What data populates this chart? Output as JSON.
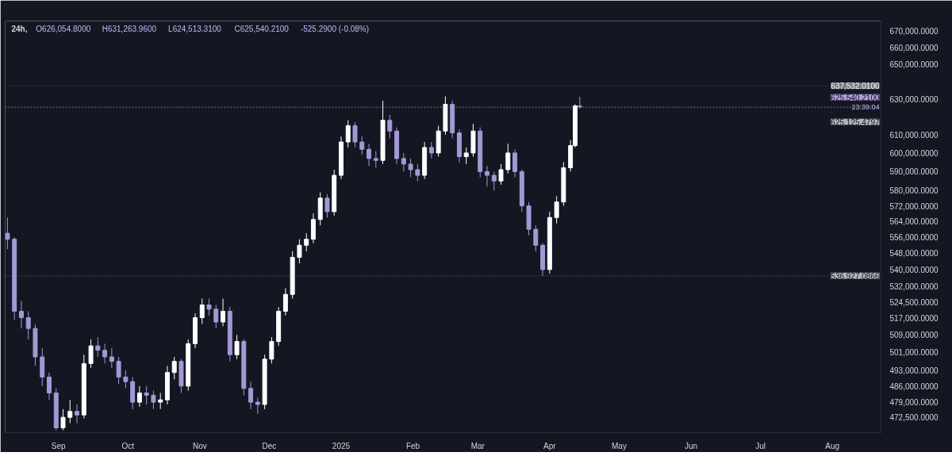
{
  "chart_data": {
    "type": "candlestick",
    "title": "24h,",
    "annotations": [
      "O626,054.8000",
      "H631,263.9600",
      "L624,513.3100",
      "C625,540.2100",
      "-525.2900 (-0.08%)",
      "23:39:04"
    ],
    "x": [
      "2024-08-10",
      "2024-08-13",
      "2024-08-16",
      "2024-08-19",
      "2024-08-22",
      "2024-08-25",
      "2024-08-28",
      "2024-08-31",
      "2024-09-03",
      "2024-09-06",
      "2024-09-09",
      "2024-09-12",
      "2024-09-15",
      "2024-09-18",
      "2024-09-21",
      "2024-09-24",
      "2024-09-27",
      "2024-09-30",
      "2024-10-03",
      "2024-10-06",
      "2024-10-09",
      "2024-10-12",
      "2024-10-15",
      "2024-10-18",
      "2024-10-21",
      "2024-10-24",
      "2024-10-27",
      "2024-10-30",
      "2024-11-02",
      "2024-11-05",
      "2024-11-08",
      "2024-11-11",
      "2024-11-14",
      "2024-11-17",
      "2024-11-20",
      "2024-11-23",
      "2024-11-26",
      "2024-11-29",
      "2024-12-02",
      "2024-12-05",
      "2024-12-08",
      "2024-12-11",
      "2024-12-14",
      "2024-12-17",
      "2024-12-20",
      "2024-12-23",
      "2024-12-26",
      "2024-12-29",
      "2025-01-01",
      "2025-01-04",
      "2025-01-07",
      "2025-01-10",
      "2025-01-13",
      "2025-01-16",
      "2025-01-19",
      "2025-01-22",
      "2025-01-25",
      "2025-01-28",
      "2025-01-31",
      "2025-02-03",
      "2025-02-06",
      "2025-02-09",
      "2025-02-12",
      "2025-02-15",
      "2025-02-18",
      "2025-02-21",
      "2025-02-24",
      "2025-02-27",
      "2025-03-02",
      "2025-03-05",
      "2025-03-08",
      "2025-03-11",
      "2025-03-14",
      "2025-03-17",
      "2025-03-20",
      "2025-03-23",
      "2025-03-26",
      "2025-03-29",
      "2025-04-01",
      "2025-04-04",
      "2025-04-07",
      "2025-04-10",
      "2025-04-12",
      "2025-04-14"
    ],
    "ohlc": [
      [
        558000,
        566000,
        550000,
        555000
      ],
      [
        555000,
        556000,
        516000,
        520000
      ],
      [
        520000,
        525000,
        512000,
        517000
      ],
      [
        517000,
        520000,
        507000,
        512000
      ],
      [
        512000,
        514000,
        495000,
        499000
      ],
      [
        499000,
        503000,
        486000,
        490000
      ],
      [
        490000,
        492000,
        480000,
        483000
      ],
      [
        483000,
        485000,
        467000,
        468000
      ],
      [
        468000,
        476000,
        467000,
        472500
      ],
      [
        472500,
        480000,
        470000,
        475000
      ],
      [
        475000,
        478000,
        470000,
        473500
      ],
      [
        473500,
        500000,
        472000,
        496000
      ],
      [
        496000,
        507000,
        494000,
        504000
      ],
      [
        504000,
        508000,
        499000,
        502000
      ],
      [
        502000,
        505000,
        496000,
        499000
      ],
      [
        499000,
        503000,
        494000,
        497000
      ],
      [
        497000,
        499000,
        487000,
        490000
      ],
      [
        490000,
        493000,
        485000,
        488000
      ],
      [
        488000,
        490000,
        476000,
        479000
      ],
      [
        479000,
        486000,
        477000,
        483000
      ],
      [
        483000,
        486000,
        478000,
        482000
      ],
      [
        482000,
        484000,
        476000,
        479000
      ],
      [
        479000,
        483000,
        476000,
        480000
      ],
      [
        480000,
        495000,
        478000,
        492000
      ],
      [
        492000,
        499000,
        489000,
        497000
      ],
      [
        497000,
        498000,
        483000,
        486000
      ],
      [
        486000,
        507000,
        484000,
        505000
      ],
      [
        505000,
        519000,
        503000,
        517000
      ],
      [
        517000,
        526000,
        514000,
        523000
      ],
      [
        523000,
        526000,
        518000,
        521000
      ],
      [
        521000,
        523000,
        512000,
        515000
      ],
      [
        515000,
        526000,
        513000,
        520000
      ],
      [
        520000,
        522000,
        497000,
        500000
      ],
      [
        500000,
        509000,
        498000,
        506000
      ],
      [
        506000,
        507000,
        482000,
        485000
      ],
      [
        485000,
        488000,
        476000,
        479000
      ],
      [
        479000,
        481000,
        474000,
        478000
      ],
      [
        478000,
        500000,
        476000,
        498000
      ],
      [
        498000,
        508000,
        496000,
        506000
      ],
      [
        506000,
        522000,
        504000,
        520000
      ],
      [
        520000,
        531000,
        518000,
        528000
      ],
      [
        528000,
        549000,
        526000,
        546000
      ],
      [
        546000,
        555000,
        543000,
        552000
      ],
      [
        552000,
        558000,
        549000,
        555000
      ],
      [
        555000,
        568000,
        553000,
        565000
      ],
      [
        565000,
        579000,
        562000,
        576000
      ],
      [
        576000,
        578000,
        566000,
        569000
      ],
      [
        569000,
        591000,
        567000,
        588000
      ],
      [
        588000,
        609000,
        586000,
        606000
      ],
      [
        606000,
        618000,
        603000,
        615000
      ],
      [
        615000,
        617000,
        603000,
        606000
      ],
      [
        606000,
        609000,
        599000,
        602000
      ],
      [
        602000,
        605000,
        593000,
        597000
      ],
      [
        597000,
        601000,
        592000,
        596000
      ],
      [
        596000,
        629000,
        594000,
        618000
      ],
      [
        618000,
        621000,
        608000,
        612000
      ],
      [
        612000,
        614000,
        594000,
        597000
      ],
      [
        597000,
        600000,
        590000,
        594000
      ],
      [
        594000,
        597000,
        587000,
        591000
      ],
      [
        591000,
        594000,
        585000,
        588000
      ],
      [
        588000,
        606000,
        586000,
        603000
      ],
      [
        603000,
        606000,
        597000,
        600000
      ],
      [
        600000,
        615000,
        598000,
        612000
      ],
      [
        612000,
        631500,
        610000,
        627000
      ],
      [
        627000,
        629000,
        608000,
        611000
      ],
      [
        611000,
        613000,
        595000,
        598000
      ],
      [
        598000,
        603000,
        594000,
        600000
      ],
      [
        600000,
        616000,
        598000,
        612000
      ],
      [
        612000,
        614000,
        587000,
        590000
      ],
      [
        590000,
        593000,
        582000,
        588000
      ],
      [
        588000,
        590000,
        580000,
        585000
      ],
      [
        585000,
        594000,
        583000,
        591000
      ],
      [
        591000,
        605000,
        589000,
        600000
      ],
      [
        600000,
        602000,
        587000,
        590000
      ],
      [
        590000,
        591000,
        569000,
        572000
      ],
      [
        572000,
        574000,
        557000,
        560000
      ],
      [
        560000,
        562000,
        549000,
        552000
      ],
      [
        552000,
        553000,
        536927.0866,
        540000
      ],
      [
        540000,
        569000,
        538000,
        566000
      ],
      [
        566000,
        577000,
        563000,
        574000
      ],
      [
        574000,
        595000,
        572000,
        592000
      ],
      [
        592000,
        607000,
        590000,
        604000
      ],
      [
        604000,
        627000,
        603000,
        626054.8
      ],
      [
        626054.8,
        631263.96,
        624513.31,
        625540.21
      ]
    ],
    "colors": [
      "#a498d6",
      "#a498d6",
      "#a498d6",
      "#a498d6",
      "#a498d6",
      "#a498d6",
      "#a498d6",
      "#a498d6",
      "#ffffff",
      "#ffffff",
      "#a498d6",
      "#ffffff",
      "#ffffff",
      "#a498d6",
      "#a498d6",
      "#a498d6",
      "#a498d6",
      "#a498d6",
      "#a498d6",
      "#ffffff",
      "#a498d6",
      "#a498d6",
      "#ffffff",
      "#ffffff",
      "#ffffff",
      "#a498d6",
      "#ffffff",
      "#ffffff",
      "#ffffff",
      "#a498d6",
      "#a498d6",
      "#ffffff",
      "#a498d6",
      "#ffffff",
      "#a498d6",
      "#a498d6",
      "#a498d6",
      "#ffffff",
      "#ffffff",
      "#ffffff",
      "#ffffff",
      "#ffffff",
      "#ffffff",
      "#ffffff",
      "#ffffff",
      "#ffffff",
      "#a498d6",
      "#ffffff",
      "#ffffff",
      "#ffffff",
      "#a498d6",
      "#a498d6",
      "#a498d6",
      "#a498d6",
      "#ffffff",
      "#a498d6",
      "#a498d6",
      "#a498d6",
      "#a498d6",
      "#a498d6",
      "#ffffff",
      "#a498d6",
      "#ffffff",
      "#ffffff",
      "#a498d6",
      "#a498d6",
      "#ffffff",
      "#ffffff",
      "#a498d6",
      "#a498d6",
      "#a498d6",
      "#ffffff",
      "#ffffff",
      "#a498d6",
      "#a498d6",
      "#a498d6",
      "#a498d6",
      "#a498d6",
      "#ffffff",
      "#ffffff",
      "#ffffff",
      "#ffffff",
      "#ffffff",
      "#a498d6"
    ],
    "xlim": [
      "2024-08-09",
      "2025-08-22"
    ],
    "xticks": [
      {
        "value": "2024-09-01",
        "label": "Sep"
      },
      {
        "value": "2024-10-01",
        "label": "Oct"
      },
      {
        "value": "2024-11-01",
        "label": "Nov"
      },
      {
        "value": "2024-12-01",
        "label": "Dec"
      },
      {
        "value": "2025-01-01",
        "label": "2025"
      },
      {
        "value": "2025-02-01",
        "label": "Feb"
      },
      {
        "value": "2025-03-01",
        "label": "Mar"
      },
      {
        "value": "2025-04-01",
        "label": "Apr"
      },
      {
        "value": "2025-05-01",
        "label": "May"
      },
      {
        "value": "2025-06-01",
        "label": "Jun"
      },
      {
        "value": "2025-07-01",
        "label": "Jul"
      },
      {
        "value": "2025-08-01",
        "label": "Aug"
      }
    ],
    "log": true,
    "ylim": [
      466000,
      676000
    ],
    "yticks": [
      {
        "value": 472500,
        "label": "472,500.0000"
      },
      {
        "value": 479000,
        "label": "479,000.0000"
      },
      {
        "value": 486000,
        "label": "486,000.0000"
      },
      {
        "value": 493000,
        "label": "493,000.0000"
      },
      {
        "value": 501000,
        "label": "501,000.0000"
      },
      {
        "value": 509000,
        "label": "509,000.0000"
      },
      {
        "value": 517000,
        "label": "517,000.0000"
      },
      {
        "value": 524500,
        "label": "524,500.0000"
      },
      {
        "value": 532000,
        "label": "532,000.0000"
      },
      {
        "value": 540000,
        "label": "540,000.0000"
      },
      {
        "value": 548000,
        "label": "548,000.0000"
      },
      {
        "value": 556000,
        "label": "556,000.0000"
      },
      {
        "value": 564000,
        "label": "564,000.0000"
      },
      {
        "value": 572000,
        "label": "572,000.0000"
      },
      {
        "value": 580000,
        "label": "580,000.0000"
      },
      {
        "value": 590000,
        "label": "590,000.0000"
      },
      {
        "value": 600000,
        "label": "600,000.0000"
      },
      {
        "value": 610000,
        "label": "610,000.0000"
      },
      {
        "value": 630000,
        "label": "630,000.0000"
      },
      {
        "value": 650000,
        "label": "650,000.0000"
      },
      {
        "value": 660000,
        "label": "660,000.0000"
      },
      {
        "value": 670000,
        "label": "670,000.0000"
      }
    ],
    "ref_lines": [
      {
        "axis": "y",
        "value": 637532.01,
        "label": "637,532.0100",
        "color": "#787b86"
      },
      {
        "axis": "y",
        "value": 625540.21,
        "label": "625,540.2100",
        "color": "#b39ddb"
      },
      {
        "axis": "y",
        "value": 625125.4797,
        "label": "625,125.4797",
        "color": "#b2b5be"
      },
      {
        "axis": "y",
        "value": 536927.0866,
        "label": "536,927.0866",
        "color": "#b2b5be"
      }
    ],
    "grid": false
  }
}
